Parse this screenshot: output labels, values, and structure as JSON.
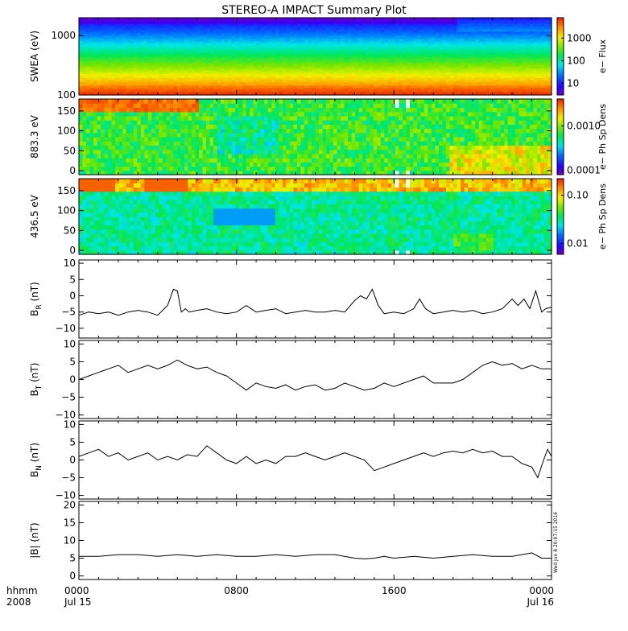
{
  "title": "STEREO-A IMPACT Summary Plot",
  "stamp": "Wed Jun  8 20:07:15 2016",
  "xaxis": {
    "hhmm_label": "hhmm",
    "year_label": "2008",
    "ticks": [
      {
        "hour": 0,
        "label": "0000",
        "sub": "Jul 15"
      },
      {
        "hour": 8,
        "label": "0800",
        "sub": ""
      },
      {
        "hour": 16,
        "label": "1600",
        "sub": ""
      },
      {
        "hour": 24,
        "label": "0000",
        "sub": "Jul 16"
      }
    ],
    "range_hours": [
      0,
      24
    ]
  },
  "chart_data": [
    {
      "type": "heatmap",
      "id": "swea",
      "ylabel": "SWEA (eV)",
      "yscale": "log",
      "ylim": [
        100,
        2000
      ],
      "yticks": [
        {
          "v": 100,
          "label": "100"
        },
        {
          "v": 1000,
          "label": "1000"
        }
      ],
      "colorbar": {
        "label": "e− Flux",
        "scale": "log",
        "range": [
          3,
          8000
        ],
        "ticks": [
          {
            "v": 10,
            "label": "10"
          },
          {
            "v": 100,
            "label": "100"
          },
          {
            "v": 1000,
            "label": "1000"
          }
        ]
      },
      "features": {
        "low_energy_band_ev": [
          100,
          130
        ],
        "high_energy_change_hour": 19.1
      }
    },
    {
      "type": "heatmap",
      "id": "pad883",
      "ylabel": "883.3 eV",
      "ylim": [
        -10,
        180
      ],
      "yticks": [
        {
          "v": 0,
          "label": "0"
        },
        {
          "v": 50,
          "label": "50"
        },
        {
          "v": 100,
          "label": "100"
        },
        {
          "v": 150,
          "label": "150"
        }
      ],
      "colorbar": {
        "label": "e− Ph Sp Dens",
        "scale": "log",
        "range": [
          8e-05,
          0.004
        ],
        "ticks": [
          {
            "v": 0.0001,
            "label": "0.0001"
          },
          {
            "v": 0.001,
            "label": "0.0010"
          }
        ]
      },
      "data_gaps_hours": [
        [
          16.0,
          16.15
        ],
        [
          16.55,
          16.7
        ]
      ]
    },
    {
      "type": "heatmap",
      "id": "pad436",
      "ylabel": "436.5 eV",
      "ylim": [
        -10,
        180
      ],
      "yticks": [
        {
          "v": 0,
          "label": "0"
        },
        {
          "v": 50,
          "label": "50"
        },
        {
          "v": 100,
          "label": "100"
        },
        {
          "v": 150,
          "label": "150"
        }
      ],
      "colorbar": {
        "label": "e− Ph Sp Dens",
        "scale": "log",
        "range": [
          0.006,
          0.22
        ],
        "ticks": [
          {
            "v": 0.01,
            "label": "0.01"
          },
          {
            "v": 0.1,
            "label": "0.10"
          }
        ]
      },
      "data_gaps_hours": [
        [
          16.0,
          16.15
        ],
        [
          16.55,
          16.7
        ]
      ]
    },
    {
      "type": "line",
      "id": "br",
      "ylabel": "B",
      "ylabel_sub": "R",
      "ylabel_unit": "(nT)",
      "ylim": [
        -13,
        11
      ],
      "yticks": [
        {
          "v": -10,
          "label": "−10"
        },
        {
          "v": -5,
          "label": "−5"
        },
        {
          "v": 0,
          "label": "0"
        },
        {
          "v": 5,
          "label": "5"
        },
        {
          "v": 10,
          "label": "10"
        }
      ],
      "x": [
        0,
        0.5,
        1,
        1.5,
        2,
        2.5,
        3,
        3.5,
        4,
        4.5,
        4.8,
        5.0,
        5.2,
        5.4,
        5.6,
        6,
        6.5,
        7,
        7.5,
        8,
        8.5,
        9,
        9.5,
        10,
        10.5,
        11,
        11.5,
        12,
        12.5,
        13,
        13.5,
        14,
        14.3,
        14.6,
        14.9,
        15.2,
        15.5,
        16,
        16.5,
        17,
        17.3,
        17.6,
        18,
        18.5,
        19,
        19.5,
        20,
        20.5,
        21,
        21.5,
        22,
        22.3,
        22.6,
        22.9,
        23.2,
        23.5,
        23.7,
        24
      ],
      "values": [
        -6,
        -5,
        -5.5,
        -5,
        -6,
        -5,
        -4.5,
        -5,
        -6,
        -3,
        2,
        1.5,
        -5,
        -4,
        -5,
        -4.5,
        -4,
        -5,
        -5.5,
        -5,
        -3,
        -5,
        -4.5,
        -4,
        -5.5,
        -5,
        -4.5,
        -5,
        -5,
        -4.5,
        -5,
        -1.5,
        0,
        -1,
        2,
        -3,
        -5.5,
        -5,
        -5.5,
        -4,
        -1,
        -4,
        -5.5,
        -5,
        -4.5,
        -5,
        -4.5,
        -5.5,
        -5,
        -4,
        -1,
        -3,
        -1,
        -4,
        1.5,
        -5,
        -4,
        -3.5
      ]
    },
    {
      "type": "line",
      "id": "bt",
      "ylabel": "B",
      "ylabel_sub": "T",
      "ylabel_unit": "(nT)",
      "ylim": [
        -11,
        11
      ],
      "yticks": [
        {
          "v": -10,
          "label": "−10"
        },
        {
          "v": -5,
          "label": "−5"
        },
        {
          "v": 0,
          "label": "0"
        },
        {
          "v": 5,
          "label": "5"
        },
        {
          "v": 10,
          "label": "10"
        }
      ],
      "x": [
        0,
        0.5,
        1,
        1.5,
        2,
        2.5,
        3,
        3.5,
        4,
        4.5,
        5,
        5.5,
        6,
        6.5,
        7,
        7.5,
        8,
        8.5,
        9,
        9.5,
        10,
        10.5,
        11,
        11.5,
        12,
        12.5,
        13,
        13.5,
        14,
        14.5,
        15,
        15.5,
        16,
        16.5,
        17,
        17.5,
        18,
        18.5,
        19,
        19.5,
        20,
        20.5,
        21,
        21.5,
        22,
        22.5,
        23,
        23.5,
        24
      ],
      "values": [
        0,
        1,
        2,
        3,
        4,
        2,
        3,
        4,
        3,
        4,
        5.5,
        4,
        3,
        3.5,
        2,
        1,
        -1,
        -3,
        -1,
        -2,
        -2.5,
        -1.5,
        -3,
        -2,
        -1.5,
        -3,
        -2.5,
        -1,
        -2,
        -3,
        -2.5,
        -1,
        -2,
        -1,
        0,
        1,
        -1,
        -1,
        -1,
        0,
        2,
        4,
        5,
        4,
        4.5,
        3,
        4,
        3,
        3
      ]
    },
    {
      "type": "line",
      "id": "bn",
      "ylabel": "B",
      "ylabel_sub": "N",
      "ylabel_unit": "(nT)",
      "ylim": [
        -11,
        11
      ],
      "yticks": [
        {
          "v": -10,
          "label": "−10"
        },
        {
          "v": -5,
          "label": "−5"
        },
        {
          "v": 0,
          "label": "0"
        },
        {
          "v": 5,
          "label": "5"
        },
        {
          "v": 10,
          "label": "10"
        }
      ],
      "x": [
        0,
        0.5,
        1,
        1.5,
        2,
        2.5,
        3,
        3.5,
        4,
        4.5,
        5,
        5.5,
        6,
        6.5,
        7,
        7.5,
        8,
        8.5,
        9,
        9.5,
        10,
        10.5,
        11,
        11.5,
        12,
        12.5,
        13,
        13.5,
        14,
        14.5,
        15,
        15.5,
        16,
        16.5,
        17,
        17.5,
        18,
        18.5,
        19,
        19.5,
        20,
        20.5,
        21,
        21.5,
        22,
        22.5,
        23,
        23.3,
        23.6,
        23.8,
        24
      ],
      "values": [
        1,
        2,
        3,
        1,
        2,
        0,
        1,
        2,
        0,
        1,
        0,
        1.5,
        1,
        4,
        2,
        0,
        -1,
        1,
        -1,
        0,
        -1,
        1,
        1,
        2,
        1,
        0,
        1,
        2,
        1,
        0,
        -3,
        -2,
        -1,
        0,
        1,
        2,
        1,
        2,
        2.5,
        2,
        3,
        2,
        2.5,
        1,
        1,
        -1,
        -2,
        -5,
        0,
        3,
        1
      ]
    },
    {
      "type": "line",
      "id": "bmag",
      "ylabel": "|B| (nT)",
      "ylim": [
        -1,
        21
      ],
      "yticks": [
        {
          "v": 0,
          "label": "0"
        },
        {
          "v": 5,
          "label": "5"
        },
        {
          "v": 10,
          "label": "10"
        },
        {
          "v": 15,
          "label": "15"
        },
        {
          "v": 20,
          "label": "20"
        }
      ],
      "x": [
        0,
        1,
        2,
        3,
        4,
        5,
        6,
        7,
        8,
        9,
        10,
        11,
        12,
        13,
        14,
        14.5,
        15,
        15.5,
        16,
        17,
        18,
        19,
        20,
        21,
        22,
        22.5,
        23,
        23.5,
        24
      ],
      "values": [
        5.5,
        5.5,
        6,
        6,
        5.5,
        6,
        5.5,
        6,
        5.5,
        5.5,
        6,
        5.5,
        6,
        6,
        5,
        4.8,
        5,
        5.5,
        5,
        5.5,
        5,
        5.5,
        6,
        5.5,
        5.5,
        6,
        6.5,
        5,
        5
      ]
    }
  ]
}
